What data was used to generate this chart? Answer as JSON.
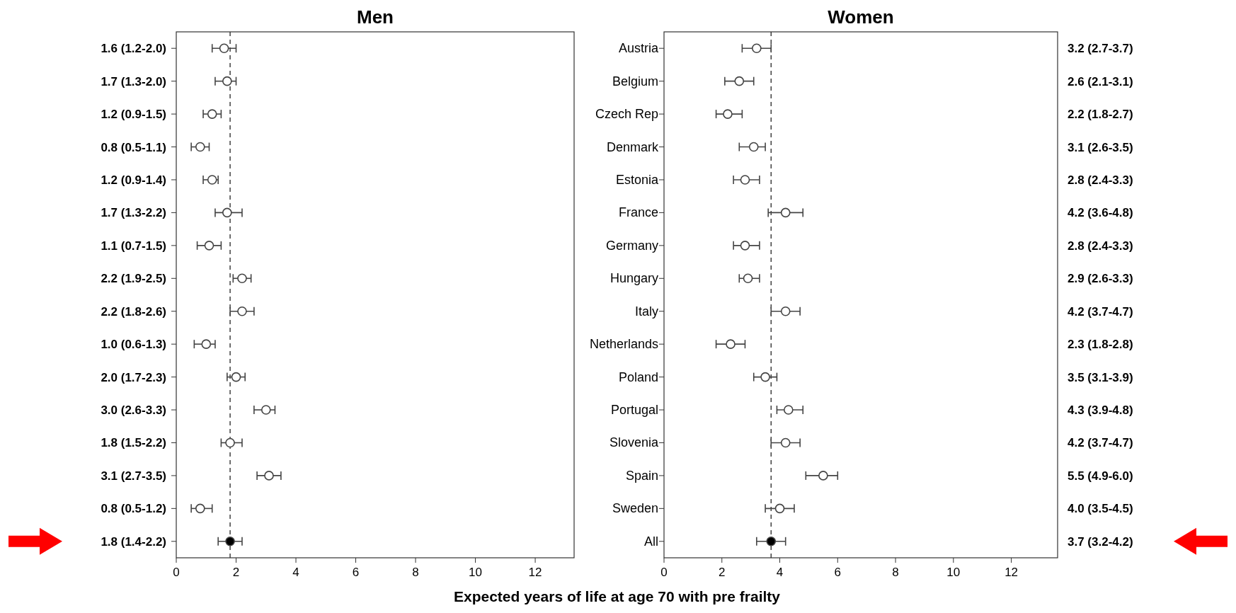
{
  "chart_data": [
    {
      "type": "scatter",
      "title": "Men",
      "xlabel": "Expected years of life at age 70 with pre frailty",
      "orientation": "horizontal",
      "tick_labels": "x",
      "marker": "circle",
      "categories": [
        null,
        null,
        null,
        null,
        null,
        null,
        null,
        null,
        null,
        null,
        null,
        null,
        null,
        null,
        null,
        null
      ],
      "values": [
        1.6,
        1.7,
        1.2,
        0.8,
        1.2,
        1.7,
        1.1,
        2.2,
        2.2,
        1.0,
        2.0,
        3.0,
        1.8,
        3.1,
        0.8,
        1.8
      ],
      "errors": [
        [
          1.2,
          2.0
        ],
        [
          1.3,
          2.0
        ],
        [
          0.9,
          1.5
        ],
        [
          0.5,
          1.1
        ],
        [
          0.9,
          1.4
        ],
        [
          1.3,
          2.2
        ],
        [
          0.7,
          1.5
        ],
        [
          1.9,
          2.5
        ],
        [
          1.8,
          2.6
        ],
        [
          0.6,
          1.3
        ],
        [
          1.7,
          2.3
        ],
        [
          2.6,
          3.3
        ],
        [
          1.5,
          2.2
        ],
        [
          2.7,
          3.5
        ],
        [
          0.5,
          1.2
        ],
        [
          1.4,
          2.2
        ]
      ],
      "value_labels": [
        "1.6 (1.2-2.0)",
        "1.7 (1.3-2.0)",
        "1.2 (0.9-1.5)",
        "0.8 (0.5-1.1)",
        "1.2 (0.9-1.4)",
        "1.7 (1.3-2.2)",
        "1.1 (0.7-1.5)",
        "2.2 (1.9-2.5)",
        "2.2 (1.8-2.6)",
        "1.0 (0.6-1.3)",
        "2.0 (1.7-2.3)",
        "3.0 (2.6-3.3)",
        "1.8 (1.5-2.2)",
        "3.1 (2.7-3.5)",
        "0.8 (0.5-1.2)",
        "1.8 (1.4-2.2)"
      ],
      "colors": [
        "#ffffff",
        "#ffffff",
        "#ffffff",
        "#ffffff",
        "#ffffff",
        "#ffffff",
        "#ffffff",
        "#ffffff",
        "#ffffff",
        "#ffffff",
        "#ffffff",
        "#ffffff",
        "#ffffff",
        "#ffffff",
        "#ffffff",
        "#000000"
      ],
      "xlim": [
        0,
        13.3
      ],
      "xticks": [
        0,
        2,
        4,
        6,
        8,
        10,
        12
      ],
      "ref_lines": [
        {
          "axis": "x",
          "value": 1.8,
          "line_style": "dashed"
        }
      ]
    },
    {
      "type": "scatter",
      "title": "Women",
      "orientation": "horizontal",
      "marker": "circle",
      "categories": [
        "Austria",
        "Belgium",
        "Czech Rep",
        "Denmark",
        "Estonia",
        "France",
        "Germany",
        "Hungary",
        "Italy",
        "Netherlands",
        "Poland",
        "Portugal",
        "Slovenia",
        "Spain",
        "Sweden",
        "All"
      ],
      "values": [
        3.2,
        2.6,
        2.2,
        3.1,
        2.8,
        4.2,
        2.8,
        2.9,
        4.2,
        2.3,
        3.5,
        4.3,
        4.2,
        5.5,
        4.0,
        3.7
      ],
      "errors": [
        [
          2.7,
          3.7
        ],
        [
          2.1,
          3.1
        ],
        [
          1.8,
          2.7
        ],
        [
          2.6,
          3.5
        ],
        [
          2.4,
          3.3
        ],
        [
          3.6,
          4.8
        ],
        [
          2.4,
          3.3
        ],
        [
          2.6,
          3.3
        ],
        [
          3.7,
          4.7
        ],
        [
          1.8,
          2.8
        ],
        [
          3.1,
          3.9
        ],
        [
          3.9,
          4.8
        ],
        [
          3.7,
          4.7
        ],
        [
          4.9,
          6.0
        ],
        [
          3.5,
          4.5
        ],
        [
          3.2,
          4.2
        ]
      ],
      "value_labels": [
        "3.2 (2.7-3.7)",
        "2.6 (2.1-3.1)",
        "2.2 (1.8-2.7)",
        "3.1 (2.6-3.5)",
        "2.8 (2.4-3.3)",
        "4.2 (3.6-4.8)",
        "2.8 (2.4-3.3)",
        "2.9 (2.6-3.3)",
        "4.2 (3.7-4.7)",
        "2.3 (1.8-2.8)",
        "3.5 (3.1-3.9)",
        "4.3 (3.9-4.8)",
        "4.2 (3.7-4.7)",
        "5.5 (4.9-6.0)",
        "4.0 (3.5-4.5)",
        "3.7 (3.2-4.2)"
      ],
      "colors": [
        "#ffffff",
        "#ffffff",
        "#ffffff",
        "#ffffff",
        "#ffffff",
        "#ffffff",
        "#ffffff",
        "#ffffff",
        "#ffffff",
        "#ffffff",
        "#ffffff",
        "#ffffff",
        "#ffffff",
        "#ffffff",
        "#ffffff",
        "#000000"
      ],
      "xlim": [
        0,
        13.6
      ],
      "xticks": [
        0,
        2,
        4,
        6,
        8,
        10,
        12
      ],
      "ref_lines": [
        {
          "axis": "x",
          "value": 3.7,
          "line_style": "dashed"
        }
      ]
    }
  ]
}
